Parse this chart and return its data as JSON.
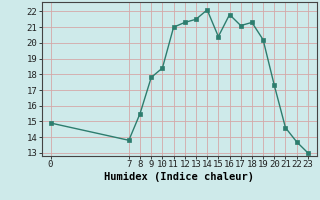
{
  "xlabel": "Humidex (Indice chaleur)",
  "x_values": [
    0,
    7,
    8,
    9,
    10,
    11,
    12,
    13,
    14,
    15,
    16,
    17,
    18,
    19,
    20,
    21,
    22,
    23
  ],
  "y_values": [
    14.9,
    13.8,
    15.5,
    17.8,
    18.4,
    21.0,
    21.3,
    21.5,
    22.1,
    20.4,
    21.8,
    21.1,
    21.3,
    20.2,
    17.3,
    14.6,
    13.7,
    13.0
  ],
  "line_color": "#2d7d6e",
  "marker_color": "#2d7d6e",
  "bg_color": "#ceeaea",
  "grid_color": "#d4a8a8",
  "ylim_min": 12.8,
  "ylim_max": 22.6,
  "xlim_min": -0.8,
  "xlim_max": 23.8,
  "yticks": [
    13,
    14,
    15,
    16,
    17,
    18,
    19,
    20,
    21,
    22
  ],
  "xticks": [
    0,
    7,
    8,
    9,
    10,
    11,
    12,
    13,
    14,
    15,
    16,
    17,
    18,
    19,
    20,
    21,
    22,
    23
  ],
  "tick_label_fontsize": 6.5,
  "xlabel_fontsize": 7.5,
  "marker_size": 2.5,
  "line_width": 1.0
}
